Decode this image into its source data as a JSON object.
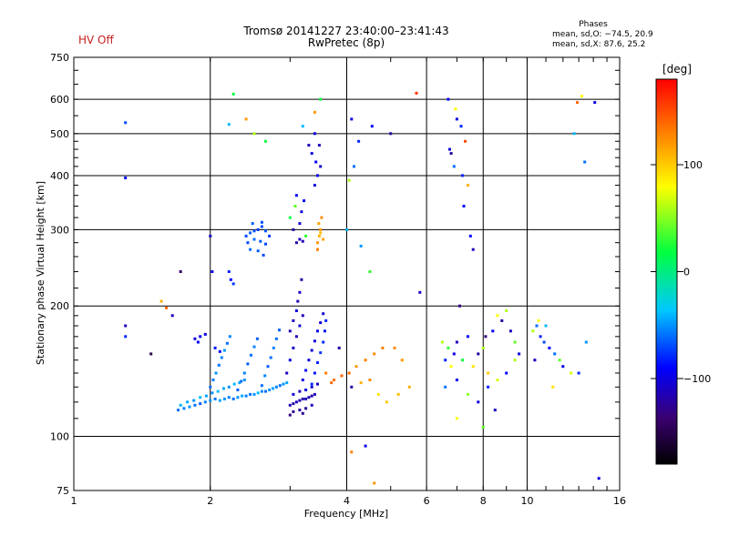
{
  "status": {
    "hv_label": "HV Off",
    "hv_color": "#c81e1e"
  },
  "header": {
    "title_line1": "Tromsø 20141227 23:40:00–23:41:43",
    "title_line2": "RwPretec (8p)"
  },
  "phases": {
    "title": "Phases",
    "line1": "mean, sd,O: −74.5, 20.9",
    "line2": "mean, sd,X:  87.6, 25.2"
  },
  "colorbar": {
    "unit": "[deg]",
    "ticks": [
      "100",
      "0",
      "−100"
    ],
    "tick_values": [
      100,
      0,
      -100
    ],
    "range": [
      -180,
      180
    ]
  },
  "chart_data": {
    "type": "scatter",
    "xlabel": "Frequency [MHz]",
    "ylabel": "Stationary phase Virtual Height [km]",
    "xscale": "log",
    "yscale": "log",
    "xlim": [
      1,
      16
    ],
    "ylim": [
      75,
      750
    ],
    "x_ticks": [
      "1",
      "2",
      "4",
      "6",
      "8",
      "10",
      "16"
    ],
    "x_tick_values": [
      1,
      2,
      4,
      6,
      8,
      10,
      16
    ],
    "y_ticks": [
      "750",
      "600",
      "500",
      "400",
      "300",
      "200",
      "100",
      "75"
    ],
    "y_tick_values": [
      750,
      600,
      500,
      400,
      300,
      200,
      100,
      75
    ],
    "grid": true,
    "color_by": "phase [deg]",
    "points": [
      [
        1.7,
        115,
        -60
      ],
      [
        1.75,
        116,
        -55
      ],
      [
        1.8,
        117,
        -50
      ],
      [
        1.85,
        118,
        -60
      ],
      [
        1.9,
        119,
        -65
      ],
      [
        1.95,
        120,
        -55
      ],
      [
        2.0,
        121,
        -50
      ],
      [
        2.05,
        122,
        -60
      ],
      [
        2.1,
        121,
        -45
      ],
      [
        2.15,
        122,
        -50
      ],
      [
        2.2,
        123,
        -55
      ],
      [
        2.25,
        122,
        -60
      ],
      [
        2.3,
        123,
        -50
      ],
      [
        2.35,
        124,
        -45
      ],
      [
        2.4,
        124,
        -55
      ],
      [
        2.45,
        125,
        -60
      ],
      [
        2.5,
        125,
        -50
      ],
      [
        2.55,
        126,
        -40
      ],
      [
        2.6,
        127,
        -55
      ],
      [
        2.65,
        127,
        -60
      ],
      [
        2.7,
        128,
        -50
      ],
      [
        2.75,
        129,
        -45
      ],
      [
        2.8,
        130,
        -55
      ],
      [
        2.85,
        131,
        -60
      ],
      [
        2.9,
        132,
        -50
      ],
      [
        2.95,
        133,
        -45
      ],
      [
        1.72,
        118,
        -40
      ],
      [
        1.78,
        120,
        -45
      ],
      [
        1.84,
        121,
        -50
      ],
      [
        1.9,
        123,
        -40
      ],
      [
        1.96,
        124,
        -45
      ],
      [
        2.02,
        126,
        -50
      ],
      [
        2.08,
        127,
        -40
      ],
      [
        2.14,
        129,
        -45
      ],
      [
        2.2,
        130,
        -50
      ],
      [
        2.26,
        132,
        -40
      ],
      [
        2.32,
        133,
        -45
      ],
      [
        2.38,
        135,
        -50
      ],
      [
        2.0,
        130,
        -60
      ],
      [
        2.03,
        135,
        -55
      ],
      [
        2.06,
        140,
        -50
      ],
      [
        2.09,
        146,
        -60
      ],
      [
        2.12,
        152,
        -55
      ],
      [
        2.15,
        158,
        -50
      ],
      [
        2.18,
        164,
        -60
      ],
      [
        2.21,
        170,
        -55
      ],
      [
        2.3,
        128,
        -65
      ],
      [
        2.34,
        134,
        -60
      ],
      [
        2.38,
        140,
        -55
      ],
      [
        2.42,
        147,
        -65
      ],
      [
        2.46,
        154,
        -60
      ],
      [
        2.5,
        161,
        -55
      ],
      [
        2.54,
        168,
        -65
      ],
      [
        2.6,
        131,
        -60
      ],
      [
        2.64,
        138,
        -55
      ],
      [
        2.68,
        145,
        -65
      ],
      [
        2.72,
        152,
        -60
      ],
      [
        2.76,
        160,
        -55
      ],
      [
        2.8,
        168,
        -60
      ],
      [
        2.84,
        176,
        -65
      ],
      [
        1.85,
        168,
        -100
      ],
      [
        1.9,
        170,
        -95
      ],
      [
        1.95,
        172,
        -100
      ],
      [
        1.88,
        165,
        -90
      ],
      [
        2.05,
        160,
        -85
      ],
      [
        2.1,
        157,
        -90
      ],
      [
        2.4,
        290,
        -70
      ],
      [
        2.45,
        295,
        -65
      ],
      [
        2.5,
        298,
        -70
      ],
      [
        2.55,
        300,
        -75
      ],
      [
        2.6,
        305,
        -70
      ],
      [
        2.65,
        298,
        -65
      ],
      [
        2.42,
        280,
        -70
      ],
      [
        2.5,
        285,
        -60
      ],
      [
        2.58,
        282,
        -65
      ],
      [
        2.65,
        278,
        -70
      ],
      [
        2.45,
        270,
        -60
      ],
      [
        2.55,
        268,
        -65
      ],
      [
        2.62,
        262,
        -70
      ],
      [
        2.7,
        290,
        -75
      ],
      [
        2.48,
        310,
        -65
      ],
      [
        2.6,
        312,
        -70
      ],
      [
        2.2,
        240,
        -80
      ],
      [
        2.22,
        230,
        -90
      ],
      [
        2.25,
        225,
        -75
      ],
      [
        2.0,
        290,
        -110
      ],
      [
        2.02,
        240,
        -100
      ],
      [
        1.72,
        240,
        -140
      ],
      [
        2.95,
        140,
        -110
      ],
      [
        3.0,
        150,
        -100
      ],
      [
        3.05,
        160,
        -110
      ],
      [
        3.1,
        170,
        -115
      ],
      [
        3.15,
        180,
        -105
      ],
      [
        3.2,
        190,
        -110
      ],
      [
        3.0,
        175,
        -115
      ],
      [
        3.05,
        185,
        -110
      ],
      [
        3.1,
        195,
        -100
      ],
      [
        3.12,
        205,
        -115
      ],
      [
        3.15,
        215,
        -110
      ],
      [
        3.18,
        230,
        -120
      ],
      [
        3.0,
        118,
        -115
      ],
      [
        3.05,
        119,
        -120
      ],
      [
        3.1,
        120,
        -110
      ],
      [
        3.15,
        121,
        -115
      ],
      [
        3.2,
        122,
        -120
      ],
      [
        3.25,
        122,
        -110
      ],
      [
        3.3,
        123,
        -115
      ],
      [
        3.35,
        124,
        -120
      ],
      [
        3.4,
        125,
        -110
      ],
      [
        3.05,
        114,
        -125
      ],
      [
        3.15,
        115,
        -120
      ],
      [
        3.25,
        116,
        -125
      ],
      [
        3.35,
        118,
        -115
      ],
      [
        3.0,
        112,
        -130
      ],
      [
        3.2,
        113,
        -125
      ],
      [
        3.05,
        125,
        -105
      ],
      [
        3.15,
        127,
        -110
      ],
      [
        3.25,
        128,
        -100
      ],
      [
        3.35,
        130,
        -105
      ],
      [
        3.45,
        132,
        -110
      ],
      [
        3.2,
        135,
        -100
      ],
      [
        3.25,
        142,
        -95
      ],
      [
        3.3,
        150,
        -100
      ],
      [
        3.35,
        158,
        -105
      ],
      [
        3.4,
        166,
        -100
      ],
      [
        3.45,
        175,
        -95
      ],
      [
        3.5,
        183,
        -100
      ],
      [
        3.55,
        192,
        -105
      ],
      [
        3.35,
        132,
        -80
      ],
      [
        3.4,
        140,
        -85
      ],
      [
        3.45,
        148,
        -80
      ],
      [
        3.5,
        156,
        -75
      ],
      [
        3.55,
        165,
        -80
      ],
      [
        3.58,
        175,
        -85
      ],
      [
        3.6,
        185,
        -80
      ],
      [
        3.1,
        280,
        -120
      ],
      [
        3.15,
        285,
        -110
      ],
      [
        3.2,
        282,
        -115
      ],
      [
        3.05,
        300,
        -120
      ],
      [
        3.18,
        330,
        -100
      ],
      [
        3.1,
        360,
        -90
      ],
      [
        3.22,
        350,
        -95
      ],
      [
        3.15,
        310,
        -105
      ],
      [
        3.0,
        320,
        20
      ],
      [
        3.25,
        290,
        30
      ],
      [
        3.08,
        340,
        40
      ],
      [
        3.45,
        280,
        120
      ],
      [
        3.48,
        290,
        110
      ],
      [
        3.5,
        300,
        120
      ],
      [
        3.47,
        310,
        115
      ],
      [
        3.52,
        320,
        125
      ],
      [
        3.45,
        270,
        130
      ],
      [
        3.55,
        285,
        115
      ],
      [
        3.5,
        295,
        105
      ],
      [
        3.4,
        380,
        -100
      ],
      [
        3.45,
        400,
        -95
      ],
      [
        3.5,
        420,
        -105
      ],
      [
        3.35,
        450,
        -100
      ],
      [
        3.48,
        470,
        -110
      ],
      [
        3.42,
        430,
        -90
      ],
      [
        3.3,
        470,
        -110
      ],
      [
        3.4,
        500,
        -100
      ],
      [
        3.4,
        560,
        120
      ],
      [
        3.2,
        520,
        -40
      ],
      [
        3.5,
        600,
        20
      ],
      [
        3.6,
        140,
        130
      ],
      [
        3.7,
        133,
        140
      ],
      [
        3.75,
        135,
        135
      ],
      [
        3.9,
        138,
        140
      ],
      [
        4.05,
        140,
        135
      ],
      [
        4.2,
        145,
        120
      ],
      [
        4.4,
        150,
        130
      ],
      [
        4.6,
        155,
        125
      ],
      [
        4.8,
        160,
        130
      ],
      [
        5.1,
        160,
        125
      ],
      [
        5.3,
        150,
        120
      ],
      [
        4.1,
        130,
        -120
      ],
      [
        4.3,
        133,
        110
      ],
      [
        4.5,
        135,
        125
      ],
      [
        4.7,
        125,
        90
      ],
      [
        4.9,
        120,
        100
      ],
      [
        5.2,
        125,
        105
      ],
      [
        5.5,
        130,
        110
      ],
      [
        4.0,
        300,
        -40
      ],
      [
        4.3,
        275,
        -50
      ],
      [
        4.5,
        240,
        30
      ],
      [
        4.15,
        420,
        -60
      ],
      [
        4.25,
        480,
        -80
      ],
      [
        4.1,
        540,
        -100
      ],
      [
        4.05,
        390,
        60
      ],
      [
        4.55,
        520,
        -90
      ],
      [
        5.8,
        215,
        -110
      ],
      [
        5.7,
        620,
        160
      ],
      [
        5.0,
        500,
        -120
      ],
      [
        4.4,
        95,
        -100
      ],
      [
        4.6,
        78,
        120
      ],
      [
        4.1,
        92,
        130
      ],
      [
        3.85,
        160,
        -120
      ],
      [
        6.7,
        600,
        -90
      ],
      [
        6.95,
        570,
        80
      ],
      [
        7.0,
        540,
        -100
      ],
      [
        7.15,
        520,
        -80
      ],
      [
        7.3,
        480,
        150
      ],
      [
        6.8,
        450,
        -120
      ],
      [
        6.9,
        420,
        -60
      ],
      [
        7.2,
        400,
        -80
      ],
      [
        7.4,
        380,
        110
      ],
      [
        6.75,
        460,
        -100
      ],
      [
        7.25,
        340,
        -90
      ],
      [
        7.5,
        290,
        -90
      ],
      [
        7.6,
        270,
        -110
      ],
      [
        7.1,
        200,
        -130
      ],
      [
        6.5,
        165,
        60
      ],
      [
        6.6,
        150,
        -80
      ],
      [
        6.7,
        160,
        30
      ],
      [
        6.8,
        145,
        80
      ],
      [
        6.9,
        155,
        -100
      ],
      [
        7.0,
        165,
        -110
      ],
      [
        7.2,
        150,
        20
      ],
      [
        7.4,
        170,
        -90
      ],
      [
        7.6,
        145,
        90
      ],
      [
        7.8,
        155,
        -120
      ],
      [
        8.0,
        160,
        60
      ],
      [
        8.1,
        170,
        -130
      ],
      [
        8.2,
        140,
        100
      ],
      [
        8.4,
        175,
        -90
      ],
      [
        8.6,
        190,
        80
      ],
      [
        8.8,
        185,
        -120
      ],
      [
        9.0,
        195,
        60
      ],
      [
        9.2,
        175,
        -110
      ],
      [
        9.4,
        165,
        40
      ],
      [
        9.6,
        155,
        -100
      ],
      [
        6.6,
        130,
        -60
      ],
      [
        7.0,
        135,
        -90
      ],
      [
        7.4,
        125,
        50
      ],
      [
        7.8,
        120,
        -100
      ],
      [
        8.2,
        130,
        -80
      ],
      [
        8.6,
        135,
        70
      ],
      [
        9.0,
        140,
        -90
      ],
      [
        9.4,
        150,
        60
      ],
      [
        7.0,
        110,
        80
      ],
      [
        8.0,
        105,
        40
      ],
      [
        8.5,
        115,
        -110
      ],
      [
        10.3,
        175,
        60
      ],
      [
        10.5,
        180,
        -60
      ],
      [
        10.7,
        170,
        -80
      ],
      [
        10.9,
        165,
        -70
      ],
      [
        11.2,
        160,
        -90
      ],
      [
        11.5,
        155,
        -60
      ],
      [
        11.8,
        150,
        40
      ],
      [
        12.0,
        145,
        -100
      ],
      [
        12.5,
        140,
        70
      ],
      [
        13.0,
        140,
        -80
      ],
      [
        13.5,
        165,
        -50
      ],
      [
        10.6,
        185,
        80
      ],
      [
        11.0,
        180,
        -40
      ],
      [
        10.4,
        150,
        -110
      ],
      [
        11.4,
        130,
        90
      ],
      [
        1.3,
        530,
        -70
      ],
      [
        1.3,
        395,
        -90
      ],
      [
        1.3,
        170,
        -80
      ],
      [
        1.3,
        180,
        -110
      ],
      [
        1.48,
        155,
        -150
      ],
      [
        1.56,
        205,
        110
      ],
      [
        1.6,
        198,
        140
      ],
      [
        1.65,
        190,
        -110
      ],
      [
        2.25,
        617,
        20
      ],
      [
        2.4,
        540,
        120
      ],
      [
        2.5,
        500,
        60
      ],
      [
        2.2,
        525,
        -40
      ],
      [
        2.65,
        480,
        20
      ],
      [
        12.9,
        590,
        140
      ],
      [
        13.2,
        610,
        80
      ],
      [
        14.1,
        590,
        -100
      ],
      [
        14.4,
        80,
        -100
      ],
      [
        13.4,
        430,
        -60
      ],
      [
        12.7,
        500,
        -40
      ]
    ]
  }
}
